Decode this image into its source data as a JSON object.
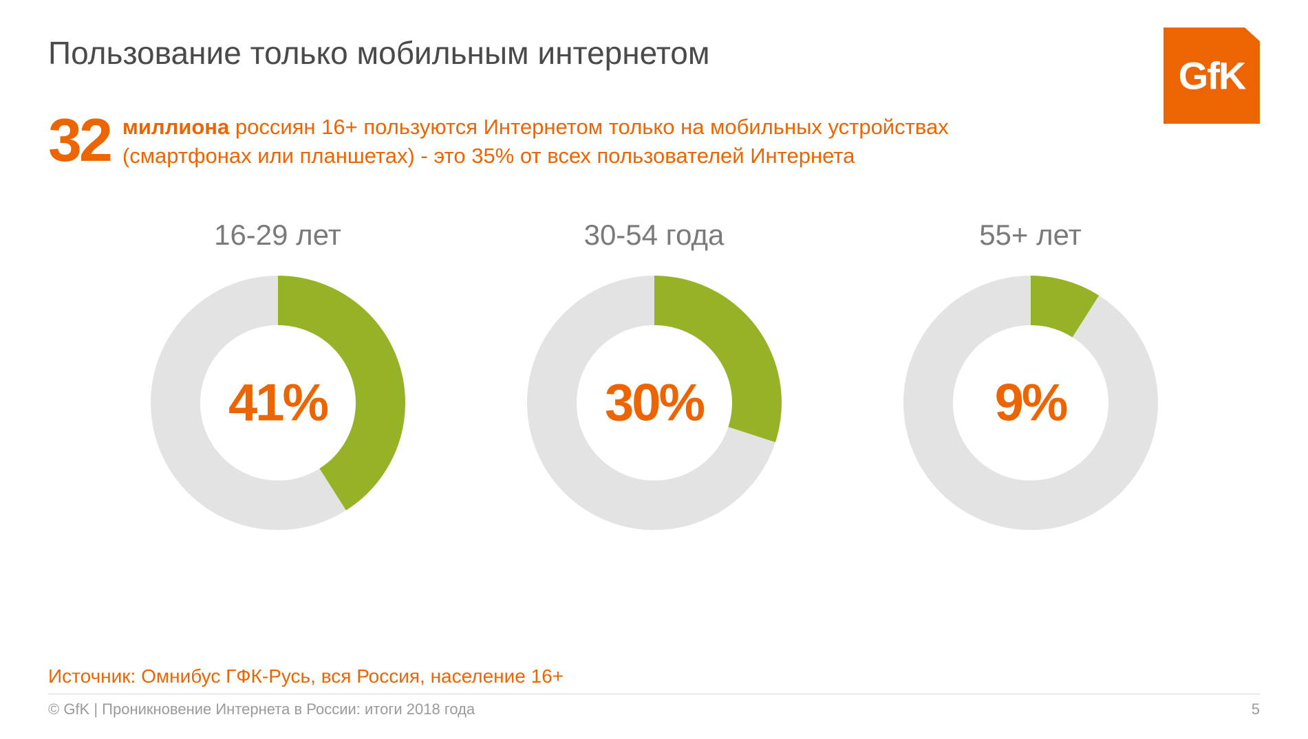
{
  "title": "Пользование только мобильным интернетом",
  "logo": {
    "text": "GfK",
    "bg_color": "#ec6502",
    "text_color": "#ffffff"
  },
  "headline": {
    "big_number": "32",
    "bold_word": "миллиона",
    "line1_rest": " россиян 16+ пользуются Интернетом только на мобильных устройствах",
    "line2": "(смартфонах или планшетах) - это 35% от всех пользователей Интернета",
    "color": "#ec6502",
    "number_fontsize": 88,
    "text_fontsize": 31
  },
  "donuts": {
    "type": "donut",
    "ring_background_color": "#e3e3e3",
    "ring_fill_color": "#96b226",
    "center_text_color": "#ec6502",
    "label_color": "#7a7a7a",
    "label_fontsize": 42,
    "center_fontsize": 76,
    "outer_radius": 185,
    "inner_radius": 113,
    "items": [
      {
        "label": "16-29 лет",
        "value": 41,
        "display": "41%"
      },
      {
        "label": "30-54 года",
        "value": 30,
        "display": "30%"
      },
      {
        "label": "55+ лет",
        "value": 9,
        "display": "9%"
      }
    ]
  },
  "source": "Источник: Омнибус ГФК-Русь, вся Россия, население 16+",
  "footer": {
    "left": "© GfK | Проникновение Интернета в России: итоги 2018 года",
    "page": "5"
  },
  "colors": {
    "background": "#ffffff",
    "title": "#4a4a4a",
    "footer_text": "#9a9a9a",
    "divider": "#d8d8d8"
  }
}
